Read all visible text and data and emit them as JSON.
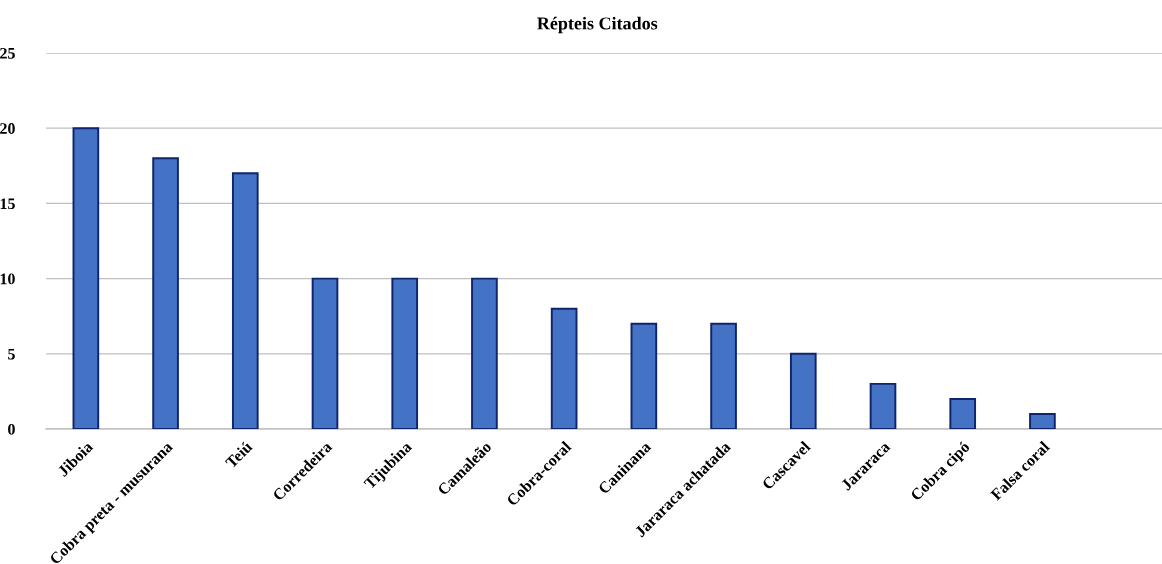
{
  "chart_data": {
    "type": "bar",
    "title": "Répteis Citados",
    "categories": [
      "Jiboia",
      "Cobra preta - musurana",
      "Teiú",
      "Corredeira",
      "Tijubina",
      "Camaleão",
      "Cobra-coral",
      "Caninana",
      "Jararaca achatada",
      "Cascavel",
      "Jararaca",
      "Cobra cipó",
      "Falsa coral",
      null
    ],
    "values": [
      20,
      18,
      17,
      10,
      10,
      10,
      8,
      7,
      7,
      5,
      3,
      2,
      1,
      null
    ],
    "color": "#4472c4",
    "ylim": [
      0,
      25
    ],
    "yticks": [
      0,
      5,
      10,
      15,
      20,
      25
    ],
    "grid": "y",
    "legend": false
  }
}
